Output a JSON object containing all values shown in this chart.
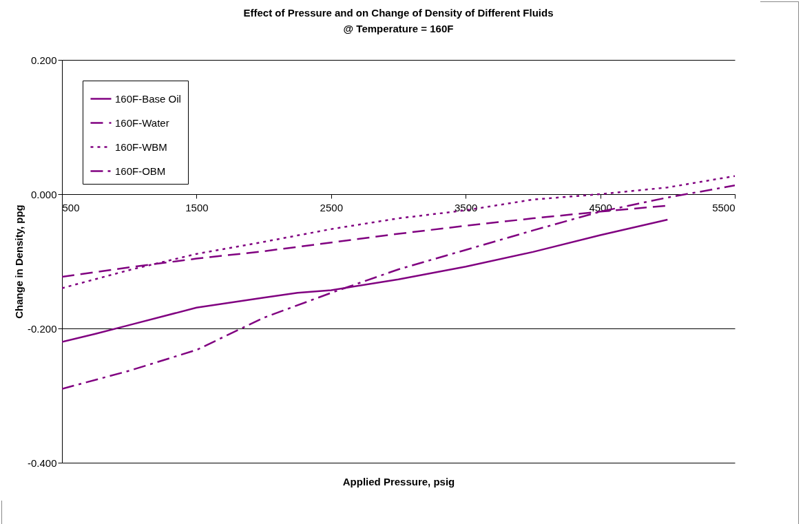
{
  "chart_data": {
    "type": "line",
    "title": "Effect of Pressure and on Change of Density of Different Fluids",
    "subtitle": "@ Temperature = 160F",
    "xlabel": "Applied Pressure, psig",
    "ylabel": "Change in Density, ppg",
    "xlim": [
      500,
      5500
    ],
    "xticks": [
      500,
      1500,
      2500,
      3500,
      4500,
      5500
    ],
    "ylim": [
      -0.4,
      0.2
    ],
    "yticks": [
      {
        "value": -0.4,
        "label": "-0.400"
      },
      {
        "value": -0.2,
        "label": "-0.200"
      },
      {
        "value": 0,
        "label": "0.000"
      },
      {
        "value": 0.2,
        "label": "0.200"
      }
    ],
    "grid": "y",
    "legend": "top left",
    "series": [
      {
        "name": "160F-Base Oil",
        "color": "#800080",
        "line_style": "solid",
        "x": [
          500,
          750,
          1000,
          1500,
          2000,
          2250,
          2500,
          3000,
          3500,
          4000,
          4500,
          5000
        ],
        "values": [
          -0.22,
          -0.208,
          -0.195,
          -0.169,
          -0.154,
          -0.147,
          -0.143,
          -0.127,
          -0.108,
          -0.086,
          -0.061,
          -0.038
        ]
      },
      {
        "name": "160F-Water",
        "color": "#800080",
        "line_style": "dashed",
        "x": [
          500,
          1000,
          1500,
          2000,
          2500,
          3000,
          3500,
          4000,
          4500,
          5000
        ],
        "values": [
          -0.123,
          -0.109,
          -0.096,
          -0.085,
          -0.072,
          -0.059,
          -0.047,
          -0.036,
          -0.026,
          -0.017
        ]
      },
      {
        "name": "160F-WBM",
        "color": "#800080",
        "line_style": "dotted",
        "x": [
          500,
          1000,
          1500,
          2000,
          2500,
          3000,
          3500,
          4000,
          4500,
          5000,
          5500
        ],
        "values": [
          -0.14,
          -0.113,
          -0.089,
          -0.071,
          -0.052,
          -0.036,
          -0.024,
          -0.008,
          0.0,
          0.01,
          0.027
        ]
      },
      {
        "name": "160F-OBM",
        "color": "#800080",
        "line_style": "dashdot",
        "x": [
          500,
          1000,
          1500,
          2000,
          2500,
          3000,
          3500,
          4000,
          4500,
          5000,
          5500
        ],
        "values": [
          -0.29,
          -0.263,
          -0.232,
          -0.184,
          -0.147,
          -0.112,
          -0.083,
          -0.054,
          -0.026,
          -0.005,
          0.013
        ]
      }
    ]
  }
}
